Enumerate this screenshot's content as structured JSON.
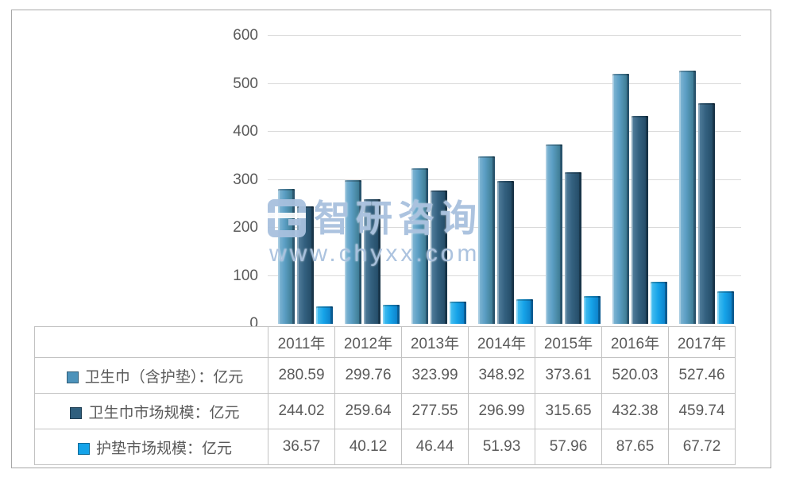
{
  "watermark": {
    "brand": "智研咨询",
    "url": "www.chyxx.com"
  },
  "chart_data": {
    "type": "bar",
    "title": "",
    "xlabel": "",
    "ylabel": "",
    "categories": [
      "2011年",
      "2012年",
      "2013年",
      "2014年",
      "2015年",
      "2016年",
      "2017年"
    ],
    "series": [
      {
        "name": "卫生巾（含护垫）：亿元",
        "color": "#4d93bb",
        "values": [
          280.59,
          299.76,
          323.99,
          348.92,
          373.61,
          520.03,
          527.46
        ]
      },
      {
        "name": "卫生巾市场规模：亿元",
        "color": "#2f5f7e",
        "values": [
          244.02,
          259.64,
          277.55,
          296.99,
          315.65,
          432.38,
          459.74
        ]
      },
      {
        "name": "护垫市场规模：亿元",
        "color": "#14a3e9",
        "values": [
          36.57,
          40.12,
          46.44,
          51.93,
          57.96,
          87.65,
          67.72
        ]
      }
    ],
    "ylim": [
      0,
      600
    ],
    "yticks": [
      0,
      100,
      200,
      300,
      400,
      500,
      600
    ],
    "grid": true,
    "legend_position": "table-left"
  }
}
